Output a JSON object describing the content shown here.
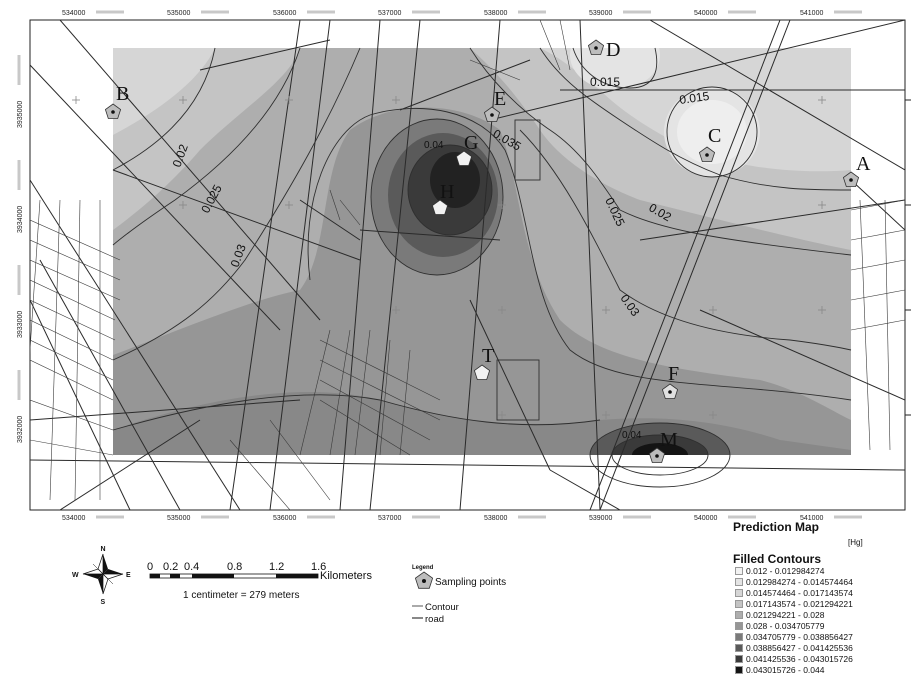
{
  "map": {
    "x_ticks": [
      "534000",
      "535000",
      "536000",
      "537000",
      "538000",
      "539000",
      "540000",
      "541000"
    ],
    "y_ticks": [
      "3935000",
      "3934000",
      "3933000",
      "3932000"
    ],
    "sampling_points": [
      {
        "label": "A"
      },
      {
        "label": "B"
      },
      {
        "label": "C"
      },
      {
        "label": "D"
      },
      {
        "label": "E"
      },
      {
        "label": "F"
      },
      {
        "label": "G"
      },
      {
        "label": "H"
      },
      {
        "label": "M"
      },
      {
        "label": "T"
      }
    ],
    "contour_labels": [
      "0.015",
      "0.015",
      "0.02",
      "0.025",
      "0.03",
      "0.035",
      "0.04",
      "0.025",
      "0.02",
      "0.03",
      "0.04"
    ],
    "colors": {
      "lightest": "#e6e6e6",
      "darkest": "#1a1a1a",
      "road": "#222222",
      "contour": "#333333"
    }
  },
  "legend": {
    "prediction_title": "Prediction Map",
    "unit": "[Hg]",
    "filled_contours_title": "Filled Contours",
    "classes": [
      {
        "label": "0.012 - 0.012984274",
        "color": "#f2f2f2"
      },
      {
        "label": "0.012984274 - 0.014574464",
        "color": "#e4e4e4"
      },
      {
        "label": "0.014574464 - 0.017143574",
        "color": "#d6d6d6"
      },
      {
        "label": "0.017143574 - 0.021294221",
        "color": "#c4c4c4"
      },
      {
        "label": "0.021294221 - 0.028",
        "color": "#aeaeae"
      },
      {
        "label": "0.028 - 0.034705779",
        "color": "#969696"
      },
      {
        "label": "0.034705779 - 0.038856427",
        "color": "#7a7a7a"
      },
      {
        "label": "0.038856427 - 0.041425536",
        "color": "#5a5a5a"
      },
      {
        "label": "0.041425536 - 0.043015726",
        "color": "#3a3a3a"
      },
      {
        "label": "0.043015726 - 0.044",
        "color": "#141414"
      }
    ],
    "small_legend_title": "Legend",
    "sampling_points_label": "Sampling points",
    "contour_label": "Contour",
    "road_label": "road"
  },
  "scale_bar": {
    "ticks": [
      "0",
      "0.2",
      "0.4",
      "0.8",
      "1.2",
      "1.6"
    ],
    "unit": "Kilometers",
    "caption": "1 centimeter = 279 meters"
  },
  "north_arrow": {
    "N": "N",
    "S": "S",
    "E": "E",
    "W": "W"
  }
}
